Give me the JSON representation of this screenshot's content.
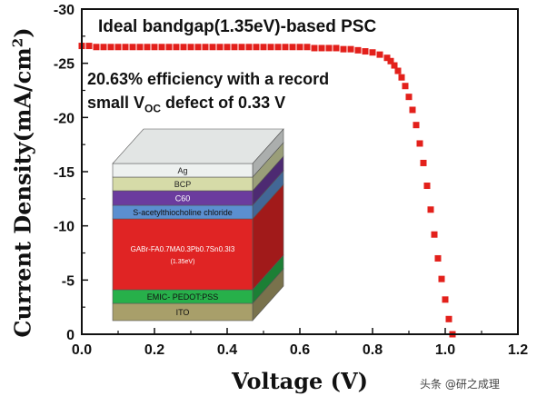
{
  "chart_data": {
    "type": "scatter",
    "xlabel": "Voltage (V)",
    "ylabel_main": "Current Density(mA/cm",
    "ylabel_sup": "2",
    "ylabel_end": ")",
    "xlim": [
      0.0,
      1.2
    ],
    "ylim": [
      0,
      -30
    ],
    "x_ticks": [
      "0.0",
      "0.2",
      "0.4",
      "0.6",
      "0.8",
      "1.0",
      "1.2"
    ],
    "y_ticks": [
      "0",
      "-5",
      "-10",
      "-15",
      "-20",
      "-25",
      "-30"
    ],
    "grid": false,
    "series": [
      {
        "color": "#e3201b",
        "x": [
          0.0,
          0.02,
          0.04,
          0.06,
          0.08,
          0.1,
          0.12,
          0.14,
          0.16,
          0.18,
          0.2,
          0.22,
          0.24,
          0.26,
          0.28,
          0.3,
          0.32,
          0.34,
          0.36,
          0.38,
          0.4,
          0.42,
          0.44,
          0.46,
          0.48,
          0.5,
          0.52,
          0.54,
          0.56,
          0.58,
          0.6,
          0.62,
          0.64,
          0.66,
          0.68,
          0.7,
          0.72,
          0.74,
          0.76,
          0.78,
          0.8,
          0.82,
          0.84,
          0.85,
          0.86,
          0.87,
          0.88,
          0.89,
          0.9,
          0.91,
          0.92,
          0.93,
          0.94,
          0.95,
          0.96,
          0.97,
          0.98,
          0.99,
          1.0,
          1.01,
          1.02
        ],
        "y": [
          -26.6,
          -26.6,
          -26.5,
          -26.5,
          -26.5,
          -26.5,
          -26.5,
          -26.5,
          -26.5,
          -26.5,
          -26.5,
          -26.5,
          -26.5,
          -26.5,
          -26.5,
          -26.5,
          -26.5,
          -26.5,
          -26.5,
          -26.5,
          -26.5,
          -26.5,
          -26.5,
          -26.5,
          -26.5,
          -26.5,
          -26.5,
          -26.5,
          -26.5,
          -26.5,
          -26.5,
          -26.5,
          -26.4,
          -26.4,
          -26.4,
          -26.4,
          -26.3,
          -26.3,
          -26.2,
          -26.1,
          -26.0,
          -25.8,
          -25.5,
          -25.2,
          -24.8,
          -24.3,
          -23.7,
          -22.9,
          -21.9,
          -20.7,
          -19.3,
          -17.6,
          -15.8,
          -13.7,
          -11.5,
          -9.2,
          -7.0,
          -5.1,
          -3.2,
          -1.4,
          0.0
        ]
      }
    ],
    "annotations": {
      "line1": "Ideal bandgap(1.35eV)-based PSC",
      "line2": "20.63% efficiency with a record",
      "line3_pre": "small V",
      "line3_sub": "OC",
      "line3_post": " defect of 0.33 V"
    }
  },
  "device_stack": {
    "layers": [
      {
        "label": "Ag",
        "color": "#eef1f0"
      },
      {
        "label": "BCP",
        "color": "#d6dba8"
      },
      {
        "label": "C60",
        "color": "#6b3b9e"
      },
      {
        "label": "S-acetylthiocholine chloride",
        "color": "#5b8fd0"
      },
      {
        "label": "GABr-FA0.7MA0.3Pb0.7Sn0.3I3",
        "label2": "(1.35eV)",
        "color": "#e02424"
      },
      {
        "label": "EMIC- PEDOT:PSS",
        "color": "#27b04a"
      },
      {
        "label": "ITO",
        "color": "#a89f6a"
      }
    ]
  },
  "watermark": "头条 @研之成理"
}
